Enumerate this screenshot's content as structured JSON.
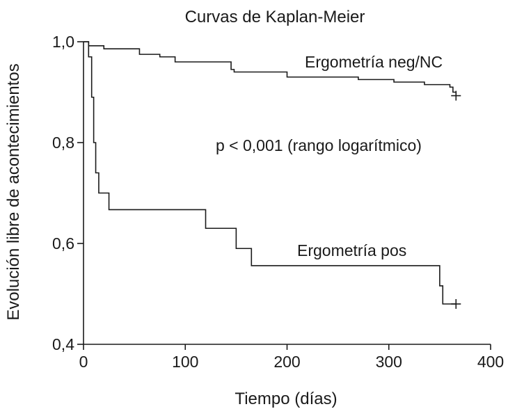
{
  "chart_data": {
    "type": "line",
    "subtype": "kaplan-meier step",
    "title": "Curvas de Kaplan-Meier",
    "xlabel": "Tiempo (días)",
    "ylabel": "Evolución libre de acontecimientos",
    "xlim": [
      0,
      400
    ],
    "ylim": [
      0.4,
      1.0
    ],
    "x_ticks": [
      0,
      100,
      200,
      300,
      400
    ],
    "x_tick_labels": [
      "0",
      "100",
      "200",
      "300",
      "400"
    ],
    "y_ticks": [
      0.4,
      0.6,
      0.8,
      1.0
    ],
    "y_tick_labels": [
      "0,4",
      "0,6",
      "0,8",
      "1,0"
    ],
    "grid": false,
    "legend": "none (series labeled directly on plot)",
    "annotation": "p < 0,001 (rango logarítmico)",
    "series": [
      {
        "name": "Ergometría neg/NC",
        "x": [
          0,
          5,
          20,
          55,
          75,
          90,
          145,
          148,
          200,
          270,
          305,
          335,
          360,
          363,
          366
        ],
        "y": [
          1.0,
          0.992,
          0.986,
          0.975,
          0.97,
          0.96,
          0.945,
          0.94,
          0.93,
          0.925,
          0.92,
          0.915,
          0.91,
          0.9,
          0.895
        ],
        "censor": [
          {
            "x": 366,
            "y": 0.893
          }
        ]
      },
      {
        "name": "Ergometría pos",
        "x": [
          0,
          5,
          8,
          10,
          12,
          15,
          20,
          25,
          120,
          150,
          165,
          350,
          353,
          356,
          366
        ],
        "y": [
          1.0,
          0.97,
          0.89,
          0.8,
          0.74,
          0.7,
          0.7,
          0.667,
          0.63,
          0.59,
          0.556,
          0.516,
          0.48,
          0.48,
          0.48
        ],
        "censor": [
          {
            "x": 366,
            "y": 0.48
          }
        ]
      }
    ]
  }
}
